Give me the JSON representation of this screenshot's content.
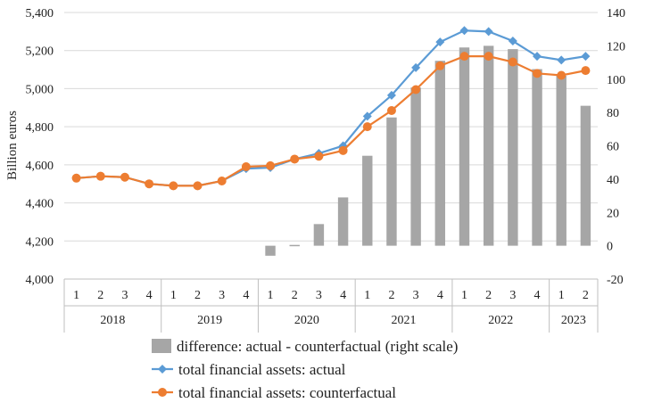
{
  "chart_data": {
    "type": "bar+line",
    "x_quarters": [
      "1",
      "2",
      "3",
      "4",
      "1",
      "2",
      "3",
      "4",
      "1",
      "2",
      "3",
      "4",
      "1",
      "2",
      "3",
      "4",
      "1",
      "2",
      "3",
      "4",
      "1",
      "2"
    ],
    "x_years": [
      {
        "label": "2018",
        "quarters": 4
      },
      {
        "label": "2019",
        "quarters": 4
      },
      {
        "label": "2020",
        "quarters": 4
      },
      {
        "label": "2021",
        "quarters": 4
      },
      {
        "label": "2022",
        "quarters": 4
      },
      {
        "label": "2023",
        "quarters": 2
      }
    ],
    "ylabel_left": "Billion euros",
    "ylim_left": [
      4000,
      5400
    ],
    "yticks_left": [
      4000,
      4200,
      4400,
      4600,
      4800,
      5000,
      5200,
      5400
    ],
    "yticks_left_labels": [
      "4,000",
      "4,200",
      "4,400",
      "4,600",
      "4,800",
      "5,000",
      "5,200",
      "5,400"
    ],
    "ylim_right": [
      -20,
      140
    ],
    "yticks_right": [
      -20,
      0,
      20,
      40,
      60,
      80,
      100,
      120,
      140
    ],
    "series": [
      {
        "name": "difference: actual - counterfactual (right scale)",
        "kind": "bar",
        "axis": "right",
        "color": "#a6a6a6",
        "values": [
          null,
          null,
          null,
          null,
          null,
          null,
          null,
          null,
          -6,
          0.5,
          13,
          29,
          54,
          77,
          95,
          111,
          119,
          120,
          118,
          106,
          102,
          84
        ]
      },
      {
        "name": "total financial assets: actual",
        "kind": "line",
        "axis": "left",
        "color": "#5b9bd5",
        "values": [
          4530,
          4540,
          4535,
          4500,
          4490,
          4490,
          4515,
          4580,
          4585,
          4630,
          4660,
          4700,
          4855,
          4965,
          5110,
          5245,
          5305,
          5300,
          5250,
          5170,
          5150,
          5170
        ]
      },
      {
        "name": "total financial assets: counterfactual",
        "kind": "line",
        "axis": "left",
        "color": "#ed7d31",
        "values": [
          4530,
          4540,
          4535,
          4500,
          4490,
          4490,
          4515,
          4590,
          4595,
          4630,
          4645,
          4675,
          4800,
          4885,
          4995,
          5120,
          5170,
          5170,
          5140,
          5080,
          5070,
          5095
        ]
      }
    ],
    "legend_placement": "bottom",
    "grid": true
  }
}
